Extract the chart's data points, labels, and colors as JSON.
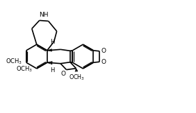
{
  "bg_color": "#ffffff",
  "figsize": [
    2.82,
    1.63
  ],
  "dpi": 100,
  "lw": 1.2,
  "lw_thin": 0.8,
  "font_size_label": 6.0,
  "font_size_H": 5.5,
  "xlim": [
    0,
    2.82
  ],
  "ylim": [
    0,
    1.63
  ]
}
